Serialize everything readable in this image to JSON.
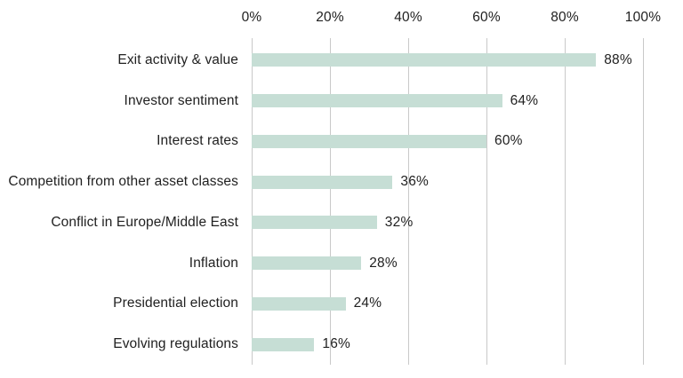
{
  "colors": {
    "background": "#ffffff",
    "bar": "#c6ded5",
    "gridline": "#c9c9c9",
    "text": "#212121"
  },
  "chart_data": {
    "type": "bar",
    "orientation": "horizontal",
    "title": "",
    "categories": [
      "Exit activity & value",
      "Investor sentiment",
      "Interest rates",
      "Competition from other asset classes",
      "Conflict in Europe/Middle East",
      "Inflation",
      "Presidential election",
      "Evolving regulations"
    ],
    "values": [
      88,
      64,
      60,
      36,
      32,
      28,
      24,
      16
    ],
    "value_labels": [
      "88%",
      "64%",
      "60%",
      "36%",
      "32%",
      "28%",
      "24%",
      "16%"
    ],
    "x_axis": {
      "position": "top",
      "min": 0,
      "max": 100,
      "ticks": [
        "0%",
        "20%",
        "40%",
        "60%",
        "80%",
        "100%"
      ]
    },
    "grid": "vertical",
    "legend": false
  }
}
